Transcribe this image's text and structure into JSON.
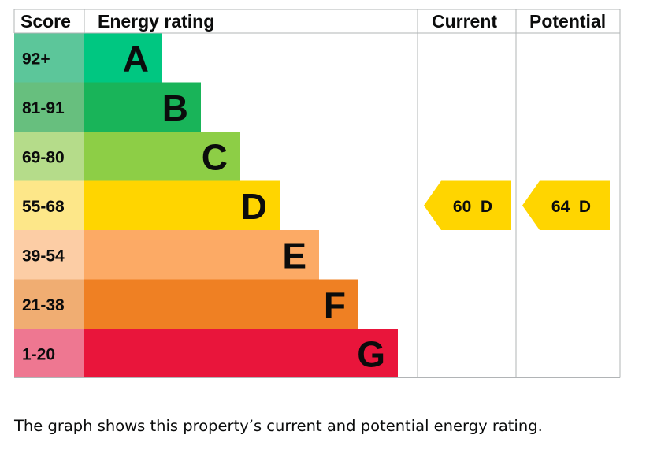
{
  "chart_data": {
    "type": "bar",
    "headers": {
      "score": "Score",
      "rating": "Energy rating",
      "current": "Current",
      "potential": "Potential"
    },
    "bands": [
      {
        "letter": "A",
        "score": "92+",
        "min": 92,
        "max": null,
        "bar_color": "#00c781",
        "score_color": "#5cc69a"
      },
      {
        "letter": "B",
        "score": "81-91",
        "min": 81,
        "max": 91,
        "bar_color": "#19b459",
        "score_color": "#67bf7e"
      },
      {
        "letter": "C",
        "score": "69-80",
        "min": 69,
        "max": 80,
        "bar_color": "#8dce46",
        "score_color": "#b5dc8a"
      },
      {
        "letter": "D",
        "score": "55-68",
        "min": 55,
        "max": 68,
        "bar_color": "#ffd500",
        "score_color": "#fde789"
      },
      {
        "letter": "E",
        "score": "39-54",
        "min": 39,
        "max": 54,
        "bar_color": "#fcaa65",
        "score_color": "#fccda5"
      },
      {
        "letter": "F",
        "score": "21-38",
        "min": 21,
        "max": 38,
        "bar_color": "#ef8023",
        "score_color": "#f0ad72"
      },
      {
        "letter": "G",
        "score": "1-20",
        "min": 1,
        "max": 20,
        "bar_color": "#e9153b",
        "score_color": "#ee7791"
      }
    ],
    "current": {
      "value": 60,
      "band": "D",
      "label": "60  D"
    },
    "potential": {
      "value": 64,
      "band": "D",
      "label": "64  D"
    }
  },
  "caption": "The graph shows this property’s current and potential energy rating."
}
